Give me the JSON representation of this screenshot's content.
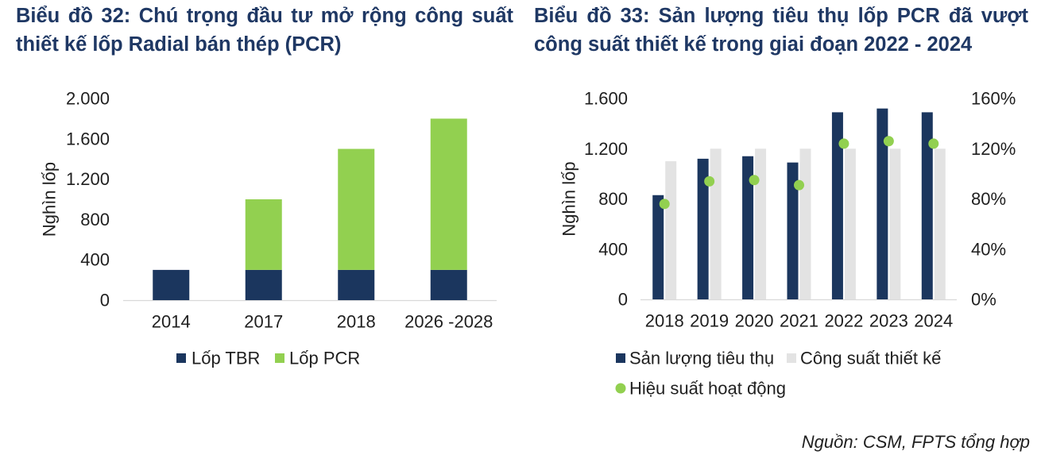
{
  "source_note": "Nguồn: CSM, FPTS tổng hợp",
  "chart_data": [
    {
      "type": "bar",
      "stacked": true,
      "title": "Biểu đồ 32: Chú trọng đầu tư mở rộng công suất thiết kế lốp Radial bán thép (PCR)",
      "xlabel": "",
      "ylabel": "Nghìn lốp",
      "categories": [
        "2014",
        "2017",
        "2018",
        "2026 -2028"
      ],
      "series": [
        {
          "name": "Lốp TBR",
          "values": [
            300,
            300,
            300,
            300
          ],
          "color": "#1b365e"
        },
        {
          "name": "Lốp PCR",
          "values": [
            0,
            700,
            1200,
            1500
          ],
          "color": "#92d050"
        }
      ],
      "ylim": [
        0,
        2000
      ],
      "yticks": [
        0,
        400,
        800,
        1200,
        1600,
        2000
      ],
      "ytick_labels": [
        "0",
        "400",
        "800",
        "1.200",
        "1.600",
        "2.000"
      ],
      "grid": false,
      "legend": "bottom"
    },
    {
      "type": "bar",
      "title": "Biểu đồ 33: Sản lượng tiêu thụ lốp PCR đã vượt công suất thiết kế trong giai đoạn 2022 - 2024",
      "xlabel": "",
      "ylabel": "Nghìn lốp",
      "categories": [
        "2018",
        "2019",
        "2020",
        "2021",
        "2022",
        "2023",
        "2024"
      ],
      "series": [
        {
          "name": "Sản lượng tiêu thụ",
          "type": "bar",
          "axis": "left",
          "values": [
            830,
            1120,
            1140,
            1090,
            1490,
            1520,
            1490
          ],
          "color": "#1b365e"
        },
        {
          "name": "Công suất thiết kế",
          "type": "bar",
          "axis": "left",
          "values": [
            1100,
            1200,
            1200,
            1200,
            1200,
            1200,
            1200
          ],
          "color": "#e3e3e3"
        },
        {
          "name": "Hiệu suất hoạt động",
          "type": "scatter",
          "axis": "right",
          "values": [
            76,
            94,
            95,
            91,
            124,
            126,
            124
          ],
          "color": "#92d050"
        }
      ],
      "ylim": [
        0,
        1600
      ],
      "yticks": [
        0,
        400,
        800,
        1200,
        1600
      ],
      "ytick_labels": [
        "0",
        "400",
        "800",
        "1.200",
        "1.600"
      ],
      "y2lim": [
        0,
        160
      ],
      "y2ticks": [
        0,
        40,
        80,
        120,
        160
      ],
      "y2tick_labels": [
        "0%",
        "40%",
        "80%",
        "120%",
        "160%"
      ],
      "grid": false,
      "legend": "bottom"
    }
  ]
}
